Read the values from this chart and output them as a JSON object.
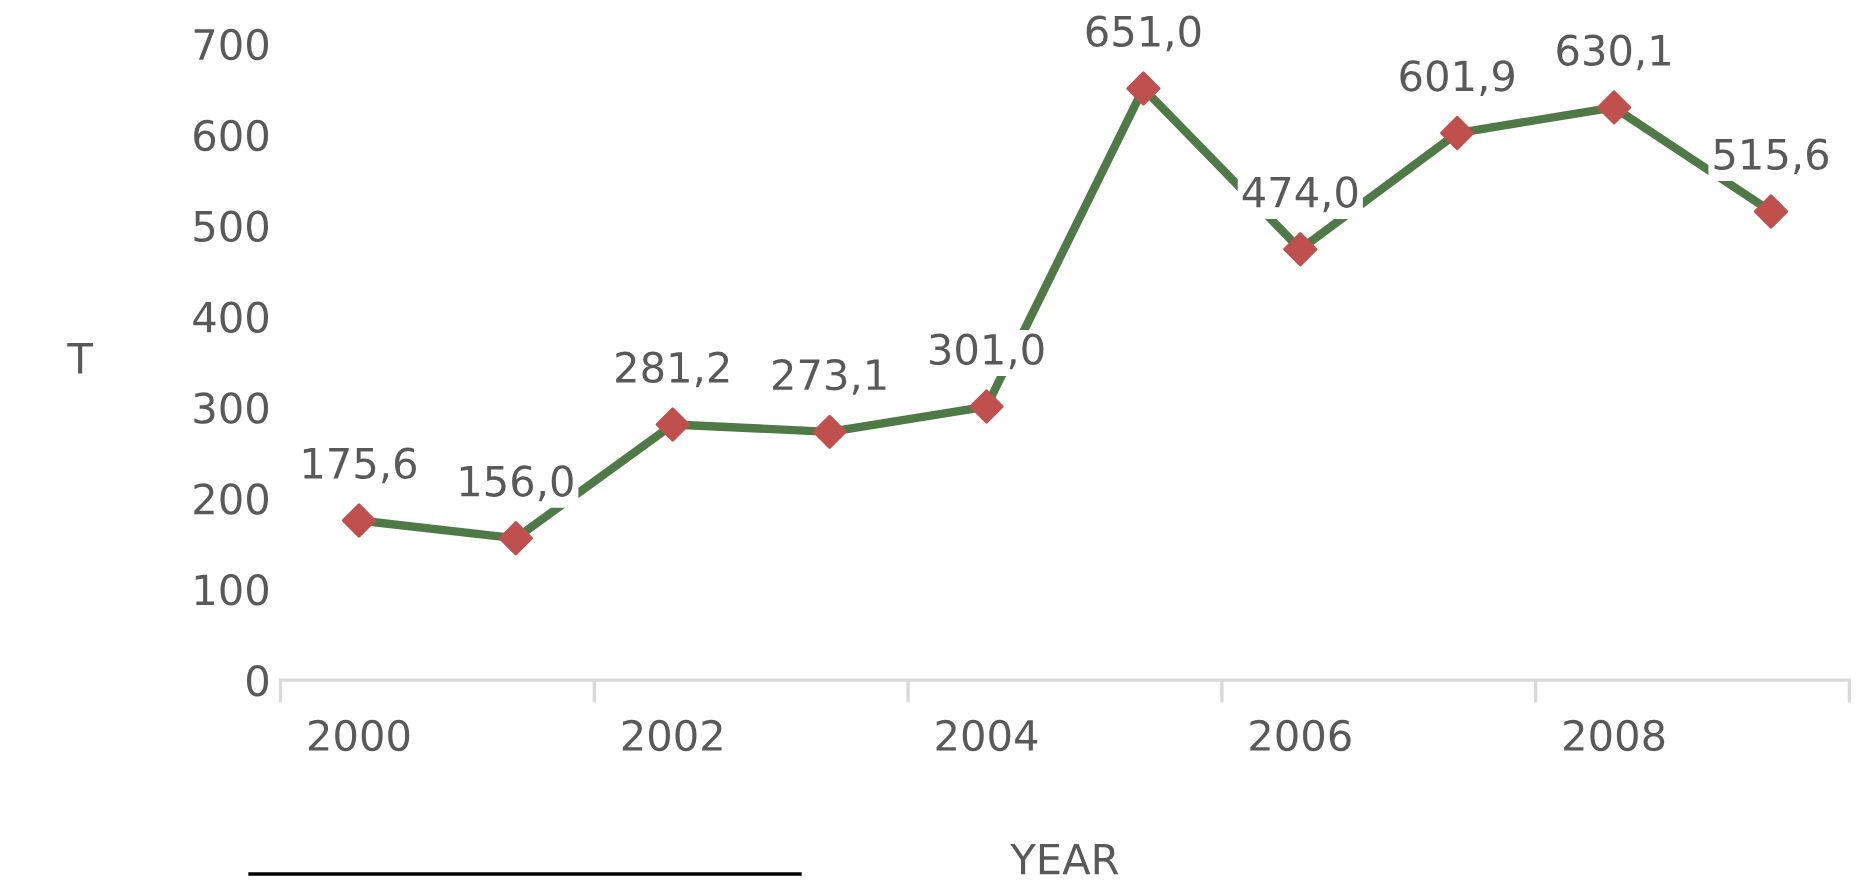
{
  "chart_data": {
    "type": "line",
    "xlabel": "YEAR",
    "ylabel": "T",
    "categories": [
      "2000",
      null,
      "2002",
      null,
      "2004",
      null,
      "2006",
      null,
      "2008",
      null
    ],
    "series": [
      {
        "color": "#4f7a48",
        "values": [
          175.6,
          156.0,
          281.2,
          273.1,
          301.0,
          651.0,
          474.0,
          601.9,
          630.1,
          515.6
        ],
        "colors": [
          "#c0504d",
          "#c0504d",
          "#c0504d",
          "#c0504d",
          "#c0504d",
          "#c0504d",
          "#c0504d",
          "#c0504d",
          "#c0504d",
          "#c0504d"
        ],
        "value_labels": [
          "175,6",
          "156,0",
          "281,2",
          "273,1",
          "301,0",
          "651,0",
          "474,0",
          "601,9",
          "630,1",
          "515,6"
        ]
      }
    ],
    "marker": "diamond",
    "line_style": "solid",
    "grid": false,
    "ylim": [
      0,
      700
    ],
    "yticks": [
      0,
      100,
      200,
      300,
      400,
      500,
      600,
      700
    ]
  }
}
